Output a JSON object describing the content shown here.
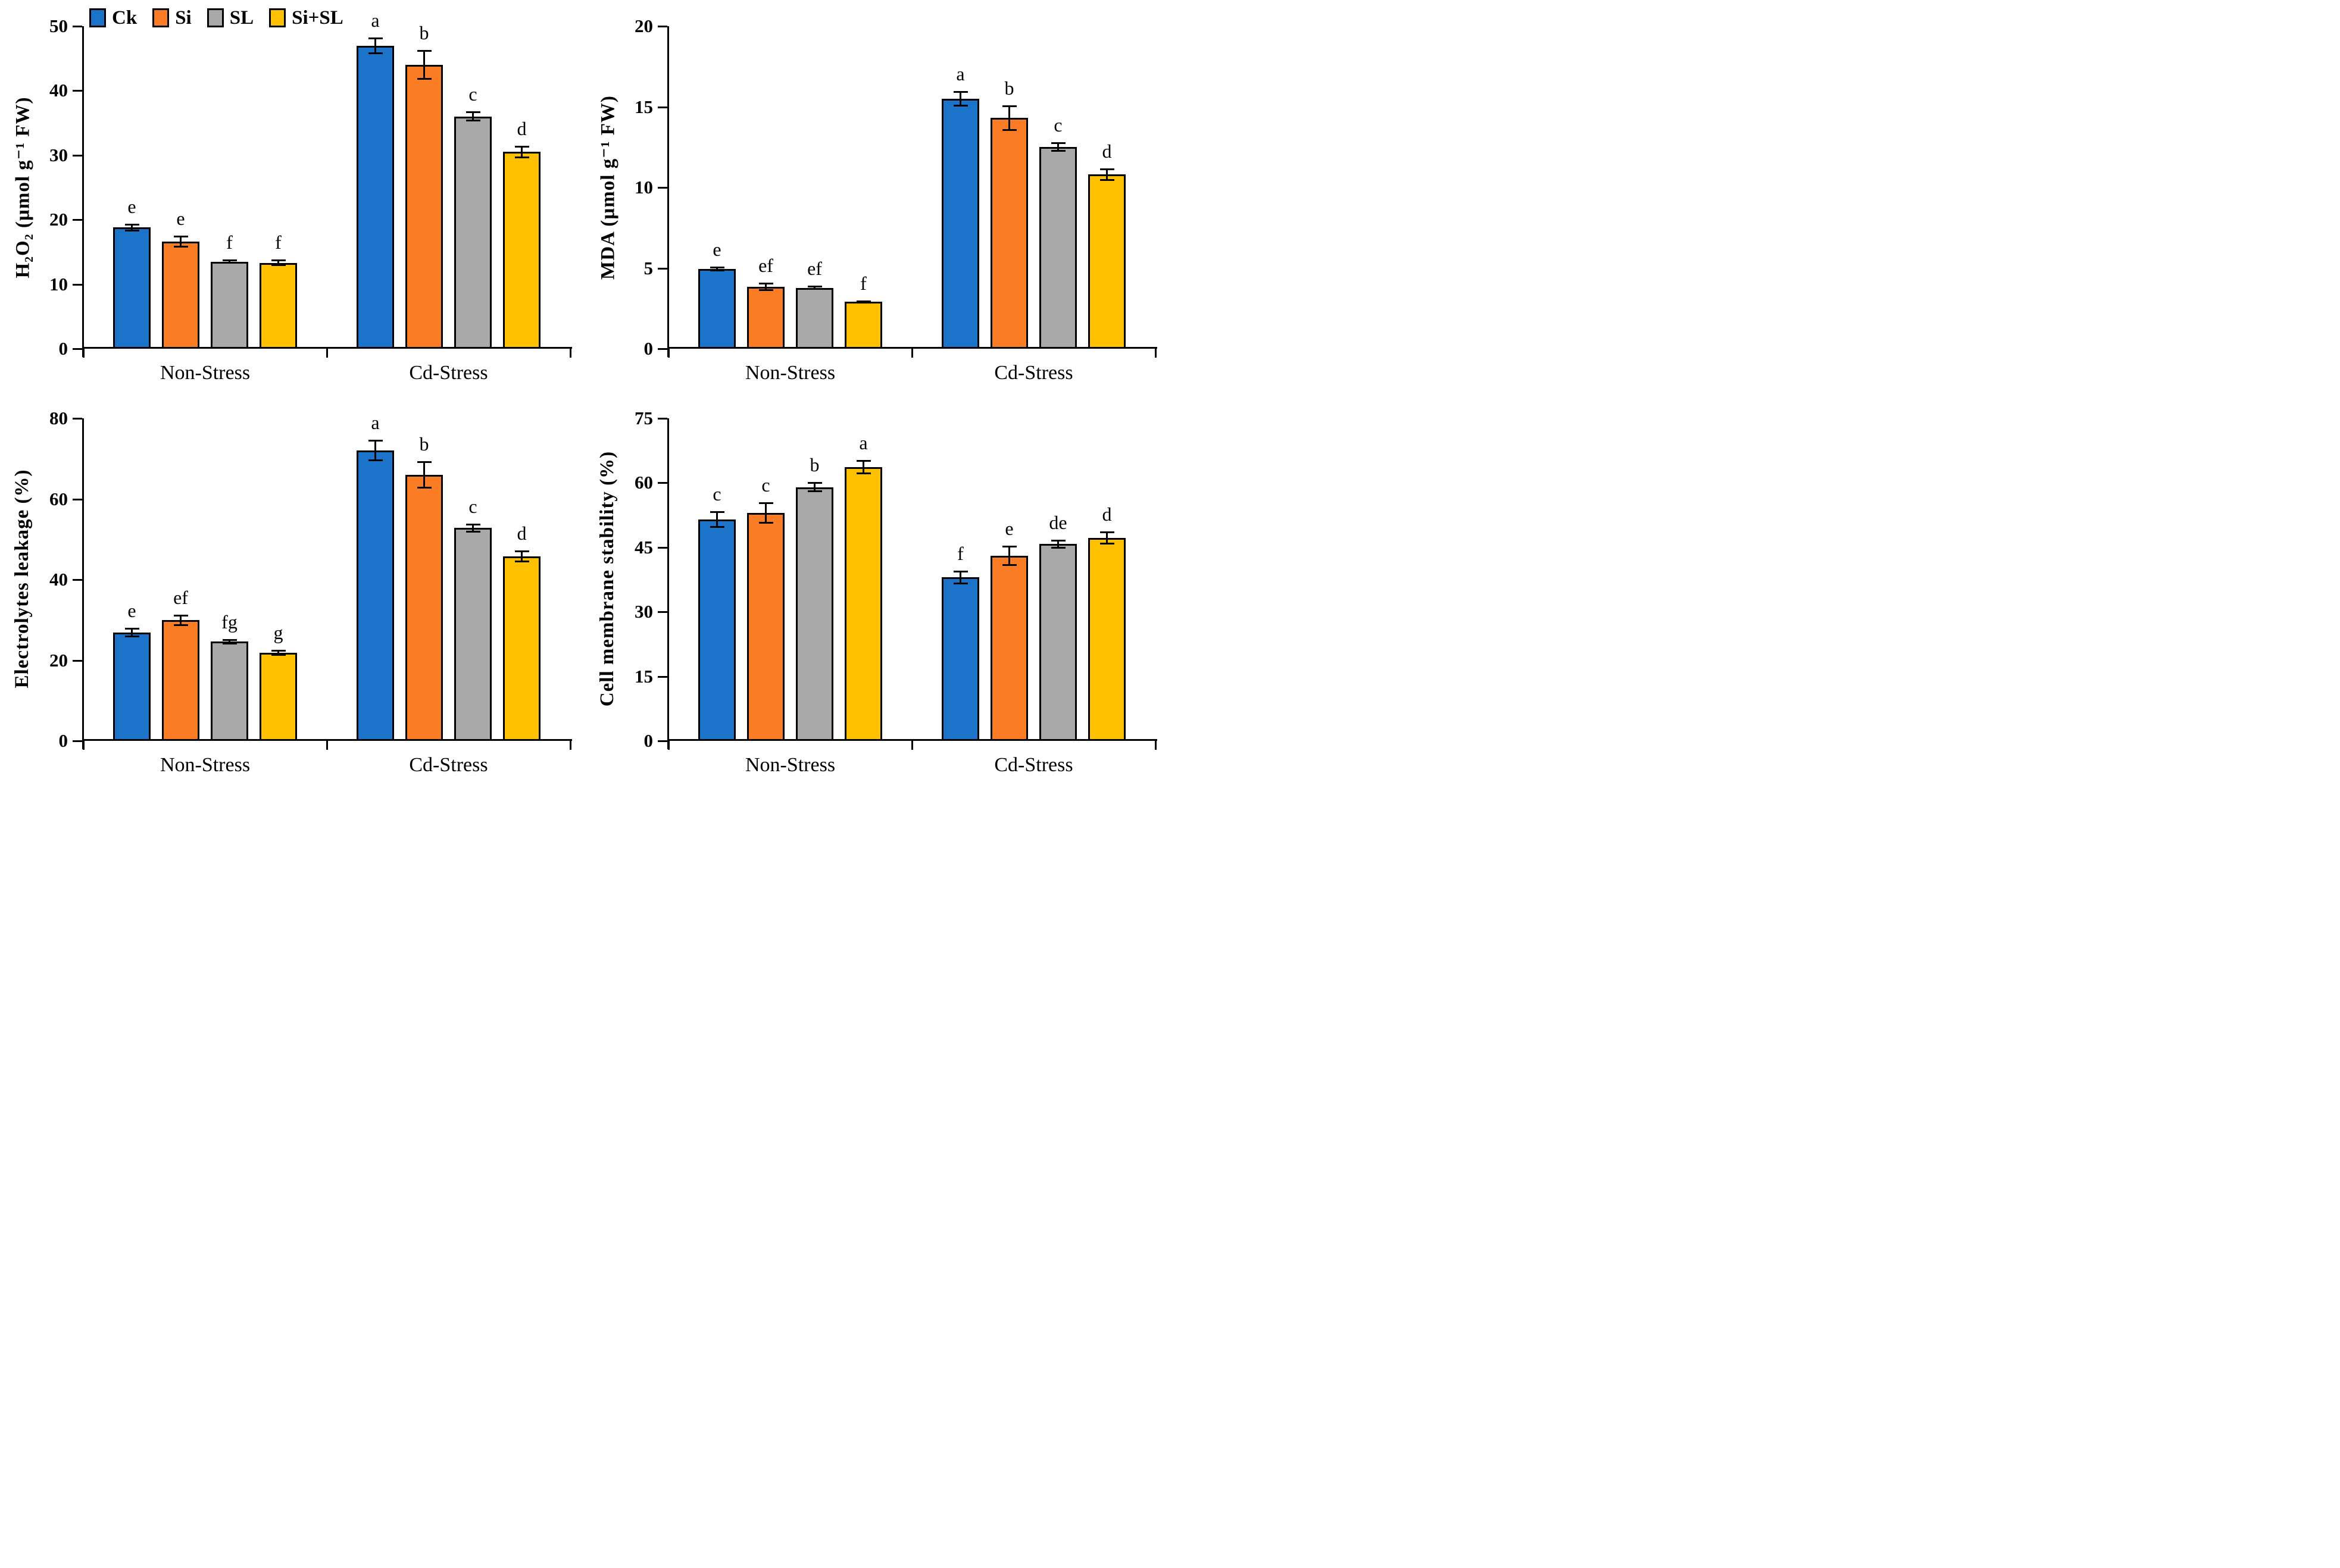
{
  "legend": [
    {
      "label": "Ck",
      "color": "#1B74CA"
    },
    {
      "label": "Si",
      "color": "#FA7D25"
    },
    {
      "label": "SL",
      "color": "#A9A9A9"
    },
    {
      "label": "Si+SL",
      "color": "#FFC000"
    }
  ],
  "chart_data": [
    {
      "type": "bar",
      "ylabel": "H₂O₂ (µmol g⁻¹ FW)",
      "ylim": [
        0,
        50
      ],
      "yticks": [
        0,
        10,
        20,
        30,
        40,
        50
      ],
      "categories": [
        "Non-Stress",
        "Cd-Stress"
      ],
      "legend_position": "top",
      "grid": false,
      "series": [
        {
          "name": "Ck",
          "values": [
            18.8,
            47.0
          ],
          "errors": [
            0.5,
            1.2
          ],
          "letters": [
            "e",
            "a"
          ]
        },
        {
          "name": "Si",
          "values": [
            16.6,
            44.0
          ],
          "errors": [
            0.8,
            2.2
          ],
          "letters": [
            "e",
            "b"
          ]
        },
        {
          "name": "SL",
          "values": [
            13.5,
            36.0
          ],
          "errors": [
            0.2,
            0.7
          ],
          "letters": [
            "f",
            "c"
          ]
        },
        {
          "name": "Si+SL",
          "values": [
            13.3,
            30.5
          ],
          "errors": [
            0.4,
            0.9
          ],
          "letters": [
            "f",
            "d"
          ]
        }
      ]
    },
    {
      "type": "bar",
      "ylabel": "MDA (µmol g⁻¹ FW)",
      "ylim": [
        0,
        20
      ],
      "yticks": [
        0,
        5,
        10,
        15,
        20
      ],
      "categories": [
        "Non-Stress",
        "Cd-Stress"
      ],
      "grid": false,
      "series": [
        {
          "name": "Ck",
          "values": [
            4.95,
            15.5
          ],
          "errors": [
            0.12,
            0.45
          ],
          "letters": [
            "e",
            "a"
          ]
        },
        {
          "name": "Si",
          "values": [
            3.85,
            14.3
          ],
          "errors": [
            0.22,
            0.75
          ],
          "letters": [
            "ef",
            "b"
          ]
        },
        {
          "name": "SL",
          "values": [
            3.78,
            12.5
          ],
          "errors": [
            0.08,
            0.25
          ],
          "letters": [
            "ef",
            "c"
          ]
        },
        {
          "name": "Si+SL",
          "values": [
            2.9,
            10.8
          ],
          "errors": [
            0.07,
            0.35
          ],
          "letters": [
            "f",
            "d"
          ]
        }
      ]
    },
    {
      "type": "bar",
      "ylabel": "Electrolytes leakage (%)",
      "ylim": [
        0,
        80
      ],
      "yticks": [
        0,
        20,
        40,
        60,
        80
      ],
      "categories": [
        "Non-Stress",
        "Cd-Stress"
      ],
      "grid": false,
      "series": [
        {
          "name": "Ck",
          "values": [
            26.9,
            72.0
          ],
          "errors": [
            1.0,
            2.5
          ],
          "letters": [
            "e",
            "a"
          ]
        },
        {
          "name": "Si",
          "values": [
            29.9,
            66.0
          ],
          "errors": [
            1.3,
            3.2
          ],
          "letters": [
            "ef",
            "b"
          ]
        },
        {
          "name": "SL",
          "values": [
            24.6,
            52.8
          ],
          "errors": [
            0.5,
            1.0
          ],
          "letters": [
            "fg",
            "c"
          ]
        },
        {
          "name": "Si+SL",
          "values": [
            21.9,
            45.8
          ],
          "errors": [
            0.6,
            1.3
          ],
          "letters": [
            "g",
            "d"
          ]
        }
      ]
    },
    {
      "type": "bar",
      "ylabel": "Cell membrane stability (%)",
      "ylim": [
        0,
        75
      ],
      "yticks": [
        0,
        15,
        30,
        45,
        60,
        75
      ],
      "categories": [
        "Non-Stress",
        "Cd-Stress"
      ],
      "grid": false,
      "series": [
        {
          "name": "Ck",
          "values": [
            51.5,
            38.0
          ],
          "errors": [
            1.8,
            1.4
          ],
          "letters": [
            "c",
            "f"
          ]
        },
        {
          "name": "Si",
          "values": [
            53.0,
            43.0
          ],
          "errors": [
            2.3,
            2.2
          ],
          "letters": [
            "c",
            "e"
          ]
        },
        {
          "name": "SL",
          "values": [
            59.0,
            45.8
          ],
          "errors": [
            1.0,
            0.9
          ],
          "letters": [
            "b",
            "de"
          ]
        },
        {
          "name": "Si+SL",
          "values": [
            63.7,
            47.2
          ],
          "errors": [
            1.5,
            1.4
          ],
          "letters": [
            "a",
            "d"
          ]
        }
      ]
    }
  ]
}
